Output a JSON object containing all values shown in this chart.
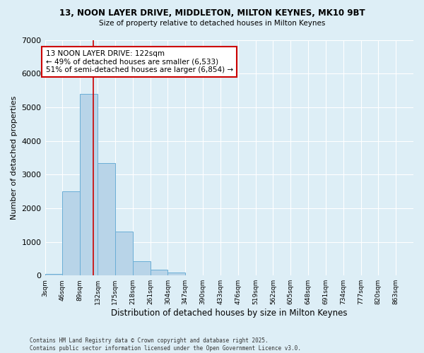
{
  "title1": "13, NOON LAYER DRIVE, MIDDLETON, MILTON KEYNES, MK10 9BT",
  "title2": "Size of property relative to detached houses in Milton Keynes",
  "xlabel": "Distribution of detached houses by size in Milton Keynes",
  "ylabel": "Number of detached properties",
  "background_color": "#ddeef6",
  "bar_color": "#b8d4e8",
  "bar_edge_color": "#6aaed6",
  "grid_color": "#ffffff",
  "bin_labels": [
    "3sqm",
    "46sqm",
    "89sqm",
    "132sqm",
    "175sqm",
    "218sqm",
    "261sqm",
    "304sqm",
    "347sqm",
    "390sqm",
    "433sqm",
    "476sqm",
    "519sqm",
    "562sqm",
    "605sqm",
    "648sqm",
    "691sqm",
    "734sqm",
    "777sqm",
    "820sqm",
    "863sqm"
  ],
  "bin_edges": [
    3,
    46,
    89,
    132,
    175,
    218,
    261,
    304,
    347,
    390,
    433,
    476,
    519,
    562,
    605,
    648,
    691,
    734,
    777,
    820,
    863
  ],
  "bar_heights": [
    50,
    2500,
    5400,
    3350,
    1300,
    430,
    175,
    80,
    0,
    0,
    0,
    0,
    0,
    0,
    0,
    0,
    0,
    0,
    0,
    0
  ],
  "property_size": 122,
  "red_line_color": "#cc0000",
  "annotation_text": "13 NOON LAYER DRIVE: 122sqm\n← 49% of detached houses are smaller (6,533)\n51% of semi-detached houses are larger (6,854) →",
  "annotation_box_color": "#ffffff",
  "annotation_box_edge": "#cc0000",
  "ylim": [
    0,
    7000
  ],
  "yticks": [
    0,
    1000,
    2000,
    3000,
    4000,
    5000,
    6000,
    7000
  ],
  "footer_line1": "Contains HM Land Registry data © Crown copyright and database right 2025.",
  "footer_line2": "Contains public sector information licensed under the Open Government Licence v3.0."
}
